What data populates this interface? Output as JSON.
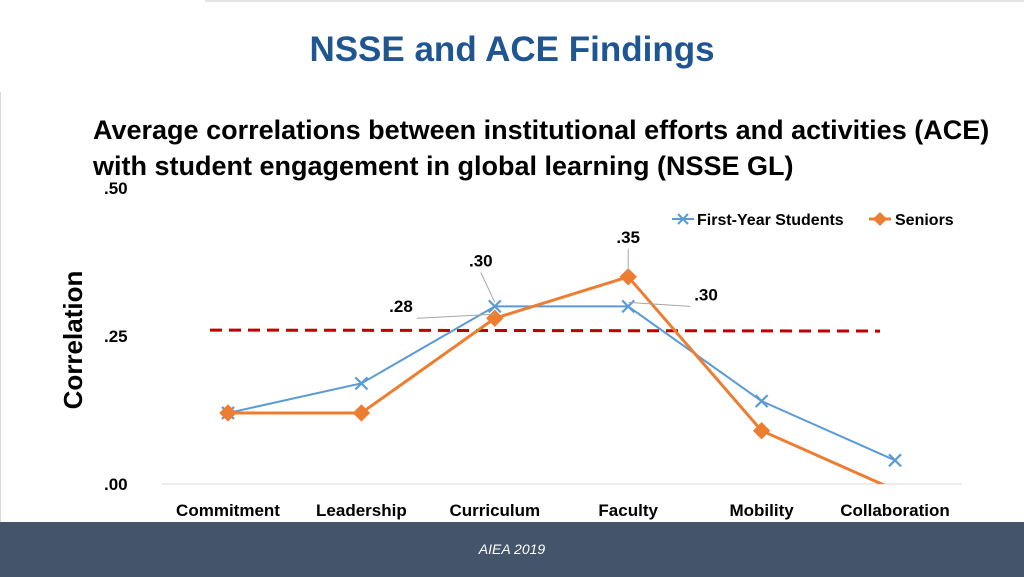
{
  "slide": {
    "title": "NSSE and ACE Findings",
    "footer": "AIEA 2019"
  },
  "colors": {
    "title": "#1f5591",
    "first_year": "#5b9bd5",
    "seniors": "#ed7d31",
    "reference_line": "#c00000",
    "footer_bg": "#44546a"
  },
  "chart_data": {
    "type": "line",
    "title": "Average correlations between institutional efforts and activities (ACE) with student engagement in global learning (NSSE GL)",
    "ylabel": "Correlation",
    "xlabel": "",
    "ylim": [
      0,
      0.5
    ],
    "yticks": [
      ".00",
      ".25",
      ".50"
    ],
    "categories": [
      "Commitment",
      "Leadership",
      "Curriculum",
      "Faculty",
      "Mobility",
      "Collaboration"
    ],
    "series": [
      {
        "name": "First-Year Students",
        "marker": "x",
        "values": [
          0.12,
          0.17,
          0.3,
          0.3,
          0.14,
          0.04
        ]
      },
      {
        "name": "Seniors",
        "marker": "diamond",
        "values": [
          0.12,
          0.12,
          0.28,
          0.35,
          0.09,
          -0.01
        ]
      }
    ],
    "reference_line": {
      "value": 0.26,
      "style": "dashed"
    },
    "data_labels": [
      {
        "text": ".30",
        "category": "Curriculum",
        "series": "First-Year Students"
      },
      {
        "text": ".28",
        "category": "Curriculum",
        "series": "Seniors"
      },
      {
        "text": ".35",
        "category": "Faculty",
        "series": "Seniors"
      },
      {
        "text": ".30",
        "category": "Faculty",
        "series": "First-Year Students"
      }
    ],
    "grid": false,
    "legend": "top-right"
  }
}
